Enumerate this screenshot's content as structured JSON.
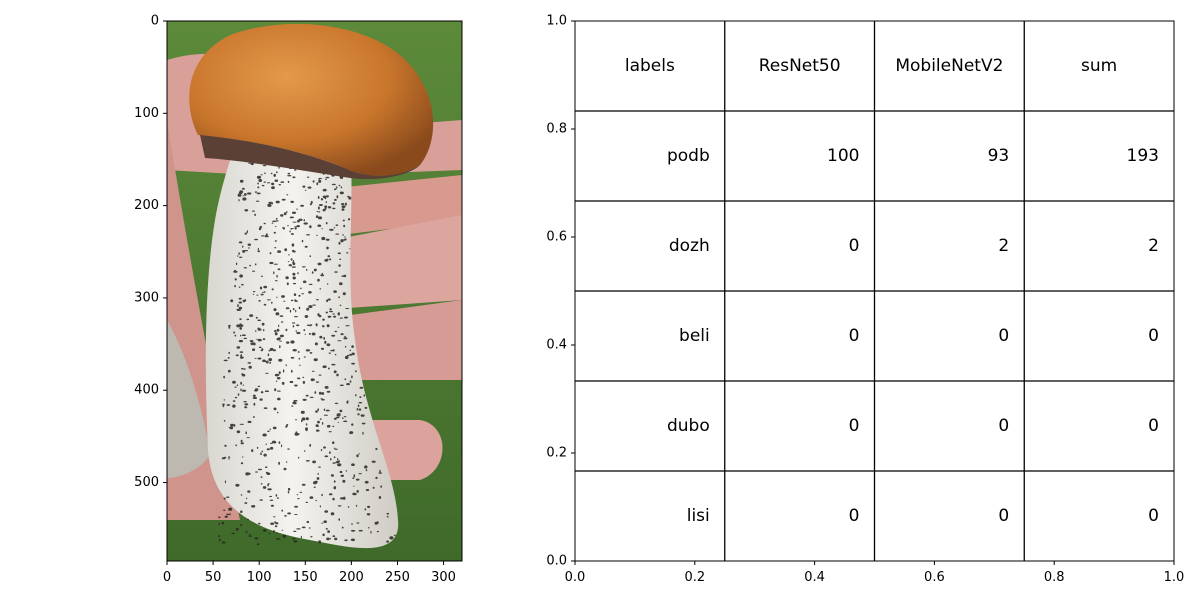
{
  "chart_data": [
    {
      "type": "image",
      "xlim": [
        0,
        320
      ],
      "ylim": [
        585,
        0
      ],
      "x_ticks": [
        0,
        50,
        100,
        150,
        200,
        250,
        300
      ],
      "y_ticks": [
        0,
        100,
        200,
        300,
        400,
        500
      ]
    },
    {
      "type": "table",
      "xlim": [
        0.0,
        1.0
      ],
      "ylim": [
        0.0,
        1.0
      ],
      "x_ticks": [
        "0.0",
        "0.2",
        "0.4",
        "0.6",
        "0.8",
        "1.0"
      ],
      "y_ticks": [
        "0.0",
        "0.2",
        "0.4",
        "0.6",
        "0.8",
        "1.0"
      ],
      "columns": [
        "labels",
        "ResNet50",
        "MobileNetV2",
        "sum"
      ],
      "rows": [
        [
          "podb",
          "100",
          "93",
          "193"
        ],
        [
          "dozh",
          "0",
          "2",
          "2"
        ],
        [
          "beli",
          "0",
          "0",
          "0"
        ],
        [
          "dubo",
          "0",
          "0",
          "0"
        ],
        [
          "lisi",
          "0",
          "0",
          "0"
        ]
      ]
    }
  ],
  "colors": {
    "grass": "#4f7a33",
    "skin": "#d9a09a",
    "cap": "#c9762c",
    "cap_dark": "#8a4a1c",
    "stem": "#ecebe6",
    "scales": "#2b2622"
  }
}
